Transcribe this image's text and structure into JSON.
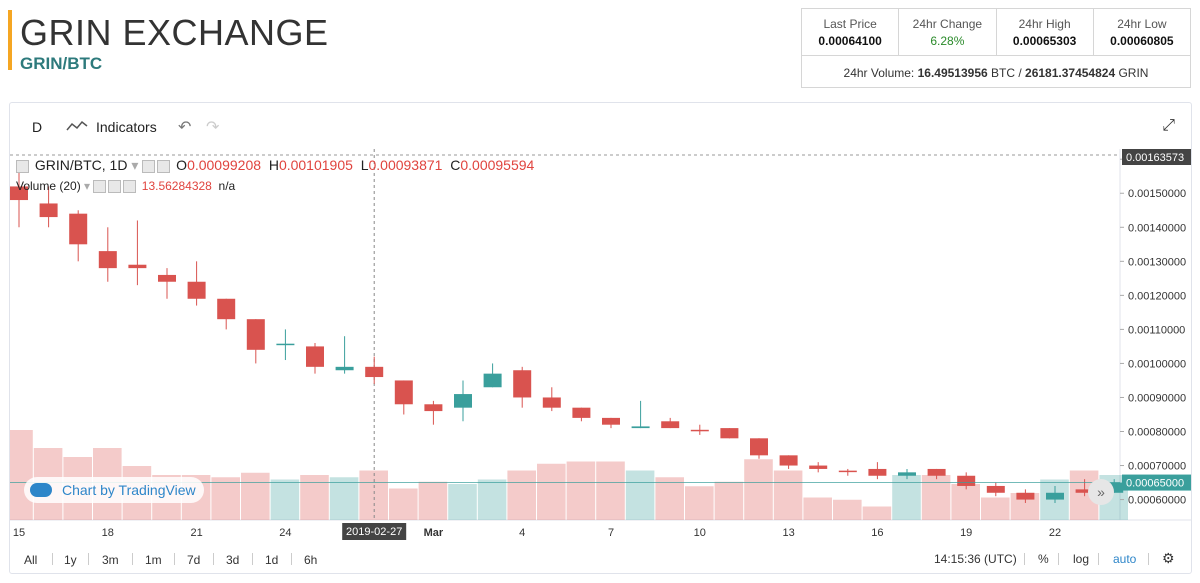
{
  "header": {
    "exchange_title": "GRIN EXCHANGE",
    "pair": "GRIN/BTC"
  },
  "stats": {
    "last_price_label": "Last Price",
    "last_price": "0.00064100",
    "change_label": "24hr Change",
    "change": "6.28%",
    "high_label": "24hr High",
    "high": "0.00065303",
    "low_label": "24hr Low",
    "low": "0.00060805",
    "volume_label": "24hr Volume:",
    "volume_btc": "16.49513956",
    "volume_btc_unit": "BTC /",
    "volume_grin": "26181.37454824",
    "volume_grin_unit": "GRIN"
  },
  "toolbar": {
    "interval": "D",
    "indicators_label": "Indicators"
  },
  "legend": {
    "symbol": "GRIN/BTC, 1D",
    "o_label": "O",
    "o_value": "0.00099208",
    "h_label": "H",
    "h_value": "0.00101905",
    "l_label": "L",
    "l_value": "0.00093871",
    "c_label": "C",
    "c_value": "0.00095594",
    "volume_label": "Volume (20)",
    "volume_value": "13.56284328",
    "volume_na": "n/a"
  },
  "price_axis": {
    "top_marker": "0.00163573",
    "current_marker": "0.00065000",
    "ticks": [
      "0.00160000",
      "0.00150000",
      "0.00140000",
      "0.00130000",
      "0.00120000",
      "0.00110000",
      "0.00100000",
      "0.00090000",
      "0.00080000",
      "0.00070000",
      "0.00060000"
    ]
  },
  "time_axis": {
    "ticks": [
      "15",
      "18",
      "21",
      "24",
      "Mar",
      "4",
      "7",
      "10",
      "13",
      "16",
      "19",
      "22"
    ],
    "crosshair_date": "2019-02-27"
  },
  "branding": {
    "badge": "Chart by TradingView"
  },
  "bottom_bar": {
    "ranges": [
      "All",
      "1y",
      "3m",
      "1m",
      "7d",
      "3d",
      "1d",
      "6h"
    ],
    "clock": "14:15:36 (UTC)",
    "percent": "%",
    "log": "log",
    "auto": "auto"
  },
  "colors": {
    "up": "#3a9f9c",
    "down": "#d9534f",
    "accent": "#f5a623",
    "pair": "#2d7a7c"
  },
  "chart_data": {
    "type": "candlestick",
    "y_range": [
      0.00054,
      0.00163
    ],
    "candles": [
      {
        "o": 0.00152,
        "h": 0.00158,
        "l": 0.0014,
        "c": 0.00148
      },
      {
        "o": 0.00147,
        "h": 0.00152,
        "l": 0.0014,
        "c": 0.00143
      },
      {
        "o": 0.00144,
        "h": 0.00145,
        "l": 0.0013,
        "c": 0.00135
      },
      {
        "o": 0.00133,
        "h": 0.0014,
        "l": 0.00124,
        "c": 0.00128
      },
      {
        "o": 0.00129,
        "h": 0.00142,
        "l": 0.00123,
        "c": 0.00128
      },
      {
        "o": 0.00126,
        "h": 0.00128,
        "l": 0.00119,
        "c": 0.00124
      },
      {
        "o": 0.00124,
        "h": 0.0013,
        "l": 0.00117,
        "c": 0.00119
      },
      {
        "o": 0.00119,
        "h": 0.00119,
        "l": 0.0011,
        "c": 0.00113
      },
      {
        "o": 0.00113,
        "h": 0.00113,
        "l": 0.001,
        "c": 0.00104
      },
      {
        "o": 0.001055,
        "h": 0.0011,
        "l": 0.00101,
        "c": 0.001058
      },
      {
        "o": 0.00105,
        "h": 0.00106,
        "l": 0.00097,
        "c": 0.00099
      },
      {
        "o": 0.00098,
        "h": 0.00108,
        "l": 0.00097,
        "c": 0.00099
      },
      {
        "o": 0.00099,
        "h": 0.00102,
        "l": 0.00094,
        "c": 0.00096
      },
      {
        "o": 0.00095,
        "h": 0.00095,
        "l": 0.00085,
        "c": 0.00088
      },
      {
        "o": 0.00088,
        "h": 0.00089,
        "l": 0.00082,
        "c": 0.00086
      },
      {
        "o": 0.00087,
        "h": 0.00095,
        "l": 0.00083,
        "c": 0.00091
      },
      {
        "o": 0.00093,
        "h": 0.001,
        "l": 0.00093,
        "c": 0.00097
      },
      {
        "o": 0.00098,
        "h": 0.00099,
        "l": 0.00087,
        "c": 0.0009
      },
      {
        "o": 0.0009,
        "h": 0.00093,
        "l": 0.00086,
        "c": 0.00087
      },
      {
        "o": 0.00087,
        "h": 0.00087,
        "l": 0.00083,
        "c": 0.00084
      },
      {
        "o": 0.00084,
        "h": 0.00084,
        "l": 0.00081,
        "c": 0.00082
      },
      {
        "o": 0.00081,
        "h": 0.00089,
        "l": 0.00081,
        "c": 0.000815
      },
      {
        "o": 0.00083,
        "h": 0.00084,
        "l": 0.00081,
        "c": 0.00081
      },
      {
        "o": 0.000805,
        "h": 0.00082,
        "l": 0.00079,
        "c": 0.000803
      },
      {
        "o": 0.00081,
        "h": 0.00081,
        "l": 0.00078,
        "c": 0.00078
      },
      {
        "o": 0.00078,
        "h": 0.00078,
        "l": 0.00072,
        "c": 0.00073
      },
      {
        "o": 0.00073,
        "h": 0.00073,
        "l": 0.00069,
        "c": 0.0007
      },
      {
        "o": 0.0007,
        "h": 0.00071,
        "l": 0.00068,
        "c": 0.00069
      },
      {
        "o": 0.000685,
        "h": 0.00069,
        "l": 0.00067,
        "c": 0.000683
      },
      {
        "o": 0.00069,
        "h": 0.00071,
        "l": 0.00066,
        "c": 0.00067
      },
      {
        "o": 0.00067,
        "h": 0.00069,
        "l": 0.00066,
        "c": 0.00068
      },
      {
        "o": 0.00069,
        "h": 0.00069,
        "l": 0.00066,
        "c": 0.00067
      },
      {
        "o": 0.00067,
        "h": 0.00068,
        "l": 0.00063,
        "c": 0.00064
      },
      {
        "o": 0.00064,
        "h": 0.00065,
        "l": 0.00061,
        "c": 0.00062
      },
      {
        "o": 0.00062,
        "h": 0.00063,
        "l": 0.00059,
        "c": 0.0006
      },
      {
        "o": 0.0006,
        "h": 0.00064,
        "l": 0.00059,
        "c": 0.00062
      },
      {
        "o": 0.00063,
        "h": 0.00066,
        "l": 0.00061,
        "c": 0.00062
      },
      {
        "o": 0.00062,
        "h": 0.00066,
        "l": 0.00062,
        "c": 0.00065
      }
    ],
    "volumes": [
      40,
      32,
      28,
      32,
      24,
      20,
      20,
      19,
      21,
      18,
      20,
      19,
      22,
      14,
      17,
      16,
      18,
      22,
      25,
      26,
      26,
      22,
      19,
      15,
      17,
      27,
      22,
      10,
      9,
      6,
      20,
      20,
      16,
      10,
      12,
      18,
      22,
      20
    ]
  }
}
